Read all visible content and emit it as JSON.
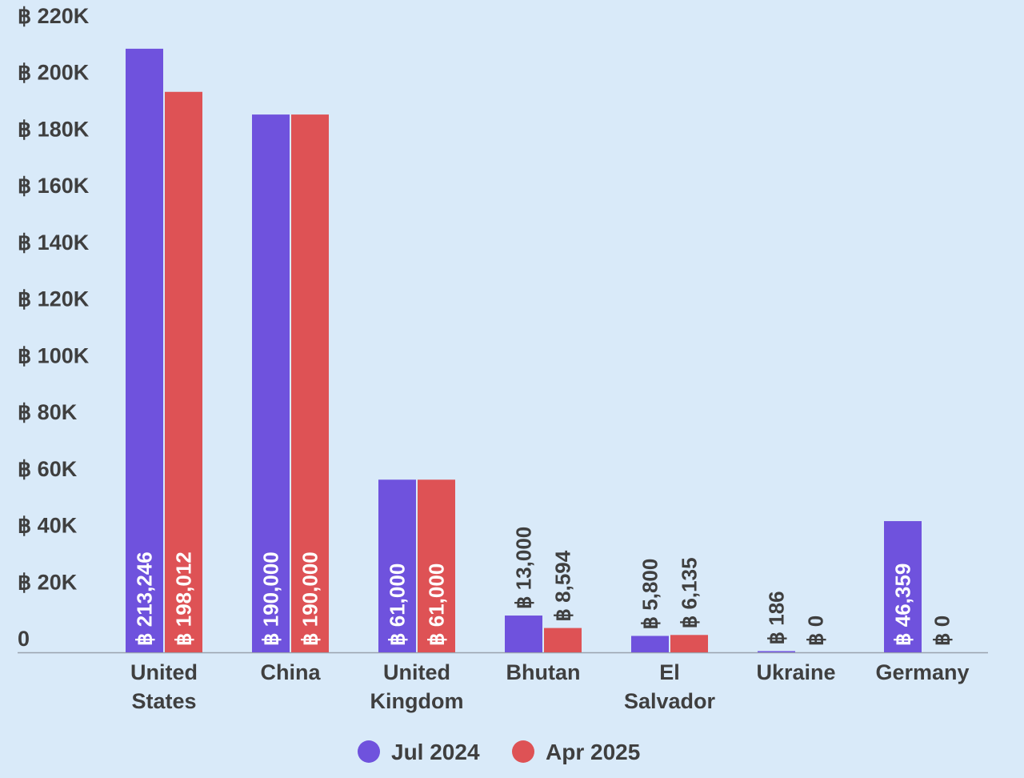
{
  "chart_data": {
    "type": "bar",
    "categories": [
      [
        "United",
        "States"
      ],
      [
        "China"
      ],
      [
        "United",
        "Kingdom"
      ],
      [
        "Bhutan"
      ],
      [
        "El",
        "Salvador"
      ],
      [
        "Ukraine"
      ],
      [
        "Germany"
      ]
    ],
    "series": [
      {
        "name": "Jul 2024",
        "color": "#6f52dd",
        "values": [
          213246,
          190000,
          61000,
          13000,
          5800,
          186,
          46359
        ],
        "labels": [
          "฿ 213,246",
          "฿ 190,000",
          "฿ 61,000",
          "฿ 13,000",
          "฿ 5,800",
          "฿ 186",
          "฿ 46,359"
        ]
      },
      {
        "name": "Apr 2025",
        "color": "#de5255",
        "values": [
          198012,
          190000,
          61000,
          8594,
          6135,
          0,
          0
        ],
        "labels": [
          "฿ 198,012",
          "฿ 190,000",
          "฿ 61,000",
          "฿ 8,594",
          "฿ 6,135",
          "฿ 0",
          "฿ 0"
        ]
      }
    ],
    "yticks": [
      0,
      20000,
      40000,
      60000,
      80000,
      100000,
      120000,
      140000,
      160000,
      180000,
      200000,
      220000
    ],
    "ytick_labels": [
      "0",
      "฿ 20K",
      "฿ 40K",
      "฿ 60K",
      "฿ 80K",
      "฿ 100K",
      "฿ 120K",
      "฿ 140K",
      "฿ 160K",
      "฿ 180K",
      "฿ 200K",
      "฿ 220K"
    ],
    "ylim": [
      0,
      230000
    ],
    "title": "",
    "xlabel": "",
    "ylabel": "",
    "grid": false,
    "legend_position": "bottom-center",
    "colors": {
      "background": "#d9eaf9",
      "text": "#3f3f3f",
      "axis": "#9aa3ad"
    }
  }
}
